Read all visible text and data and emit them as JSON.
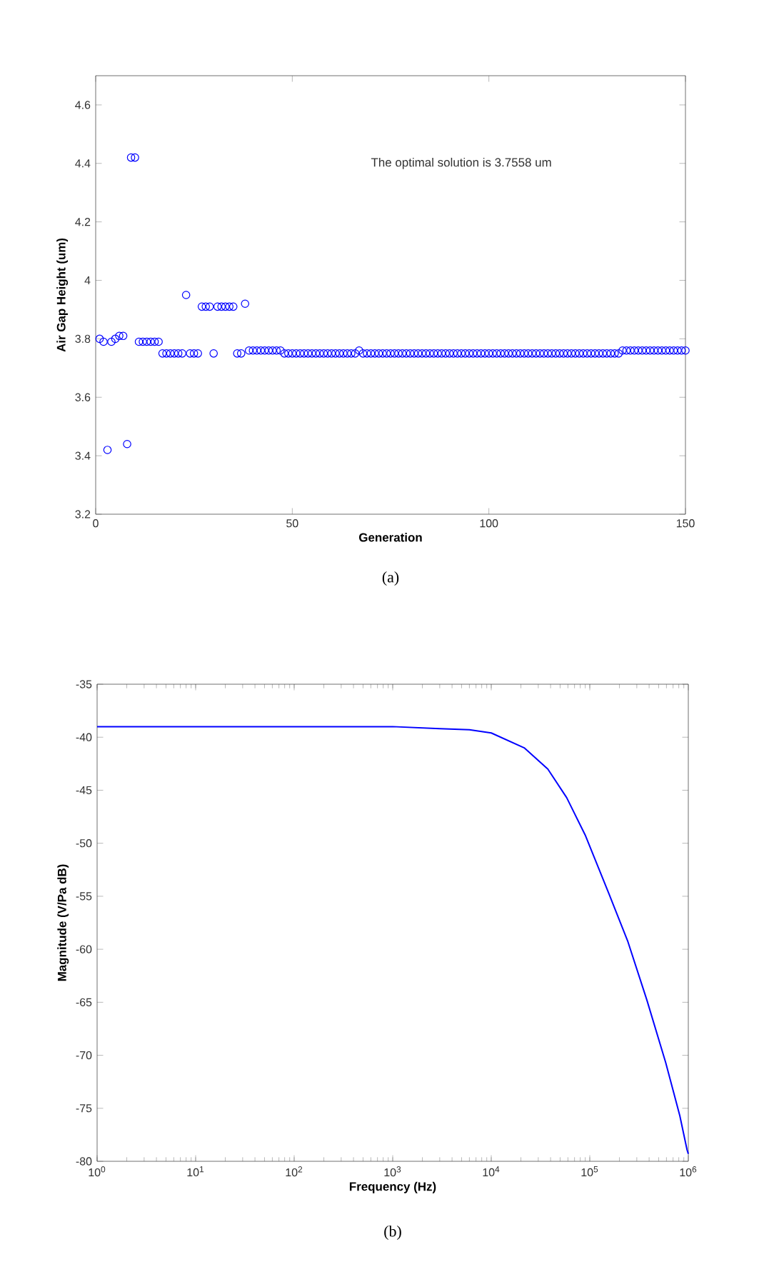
{
  "chart_data": [
    {
      "type": "scatter",
      "xlabel": "Generation",
      "ylabel": "Air Gap Height (um)",
      "marker": "circle",
      "grid": false,
      "xlim": [
        0,
        150
      ],
      "xticks": [
        0,
        50,
        100,
        150
      ],
      "ylim": [
        3.2,
        4.7
      ],
      "yticks": [
        3.2,
        3.4,
        3.6,
        3.8,
        4,
        4.2,
        4.4,
        4.6
      ],
      "annotations": [
        "The optimal solution is 3.7558 um",
        "(a)"
      ],
      "series": [
        {
          "color": "#0000ff",
          "x": [
            1,
            2,
            3,
            4,
            5,
            6,
            7,
            8,
            9,
            10,
            11,
            12,
            13,
            14,
            15,
            16,
            17,
            18,
            19,
            20,
            21,
            22,
            23,
            24,
            25,
            26,
            27,
            28,
            29,
            30,
            31,
            32,
            33,
            34,
            35,
            36,
            37,
            38,
            39,
            40,
            41,
            42,
            43,
            44,
            45,
            46,
            47,
            48,
            49,
            50,
            51,
            52,
            53,
            54,
            55,
            56,
            57,
            58,
            59,
            60,
            61,
            62,
            63,
            64,
            65,
            66,
            67,
            68,
            69,
            70,
            71,
            72,
            73,
            74,
            75,
            76,
            77,
            78,
            79,
            80,
            81,
            82,
            83,
            84,
            85,
            86,
            87,
            88,
            89,
            90,
            91,
            92,
            93,
            94,
            95,
            96,
            97,
            98,
            99,
            100,
            101,
            102,
            103,
            104,
            105,
            106,
            107,
            108,
            109,
            110,
            111,
            112,
            113,
            114,
            115,
            116,
            117,
            118,
            119,
            120,
            121,
            122,
            123,
            124,
            125,
            126,
            127,
            128,
            129,
            130,
            131,
            132,
            133,
            134,
            135,
            136,
            137,
            138,
            139,
            140,
            141,
            142,
            143,
            144,
            145,
            146,
            147,
            148,
            149,
            150
          ],
          "values": [
            3.8,
            3.79,
            3.42,
            3.79,
            3.8,
            3.81,
            3.81,
            3.44,
            4.42,
            4.42,
            3.79,
            3.79,
            3.79,
            3.79,
            3.79,
            3.79,
            3.75,
            3.75,
            3.75,
            3.75,
            3.75,
            3.75,
            3.95,
            3.75,
            3.75,
            3.75,
            3.91,
            3.91,
            3.91,
            3.75,
            3.91,
            3.91,
            3.91,
            3.91,
            3.91,
            3.75,
            3.75,
            3.92,
            3.76,
            3.76,
            3.76,
            3.76,
            3.76,
            3.76,
            3.76,
            3.76,
            3.76,
            3.75,
            3.75,
            3.75,
            3.75,
            3.75,
            3.75,
            3.75,
            3.75,
            3.75,
            3.75,
            3.75,
            3.75,
            3.75,
            3.75,
            3.75,
            3.75,
            3.75,
            3.75,
            3.75,
            3.76,
            3.75,
            3.75,
            3.75,
            3.75,
            3.75,
            3.75,
            3.75,
            3.75,
            3.75,
            3.75,
            3.75,
            3.75,
            3.75,
            3.75,
            3.75,
            3.75,
            3.75,
            3.75,
            3.75,
            3.75,
            3.75,
            3.75,
            3.75,
            3.75,
            3.75,
            3.75,
            3.75,
            3.75,
            3.75,
            3.75,
            3.75,
            3.75,
            3.75,
            3.75,
            3.75,
            3.75,
            3.75,
            3.75,
            3.75,
            3.75,
            3.75,
            3.75,
            3.75,
            3.75,
            3.75,
            3.75,
            3.75,
            3.75,
            3.75,
            3.75,
            3.75,
            3.75,
            3.75,
            3.75,
            3.75,
            3.75,
            3.75,
            3.75,
            3.75,
            3.75,
            3.75,
            3.75,
            3.75,
            3.75,
            3.75,
            3.75,
            3.76,
            3.76,
            3.76,
            3.76,
            3.76,
            3.76,
            3.76,
            3.76,
            3.76,
            3.76,
            3.76,
            3.76,
            3.76,
            3.76,
            3.76,
            3.76,
            3.76
          ]
        }
      ]
    },
    {
      "type": "line",
      "xlabel": "Frequency (Hz)",
      "ylabel": "Magnitude (V/Pa dB)",
      "marker": "none",
      "line_style": "solid",
      "grid": false,
      "log": "x",
      "xlim": [
        1,
        1000000
      ],
      "xticks": [
        {
          "value": 1,
          "label": "10$^{0}$"
        },
        {
          "value": 10,
          "label": "10$^{1}$"
        },
        {
          "value": 100,
          "label": "10$^{2}$"
        },
        {
          "value": 1000,
          "label": "10$^{3}$"
        },
        {
          "value": 10000,
          "label": "10$^{4}$"
        },
        {
          "value": 100000,
          "label": "10$^{5}$"
        },
        {
          "value": 1000000,
          "label": "10$^{6}$"
        }
      ],
      "ylim": [
        -80,
        -35
      ],
      "yticks": [
        -80,
        -75,
        -70,
        -65,
        -60,
        -55,
        -50,
        -45,
        -40,
        -35
      ],
      "annotations": [
        "(b)"
      ],
      "series": [
        {
          "color": "#0000ff",
          "x": [
            1,
            10,
            100,
            1000,
            3000,
            6000,
            10000,
            21600,
            37500,
            58300,
            90600,
            157000,
            244000,
            380000,
            590000,
            820000,
            970000,
            1000000
          ],
          "values": [
            -39.0,
            -39.0,
            -39.0,
            -39.0,
            -39.2,
            -39.3,
            -39.6,
            -41.0,
            -43.0,
            -45.7,
            -49.3,
            -54.8,
            -59.3,
            -64.8,
            -70.7,
            -75.7,
            -78.9,
            -79.3
          ]
        }
      ]
    }
  ]
}
